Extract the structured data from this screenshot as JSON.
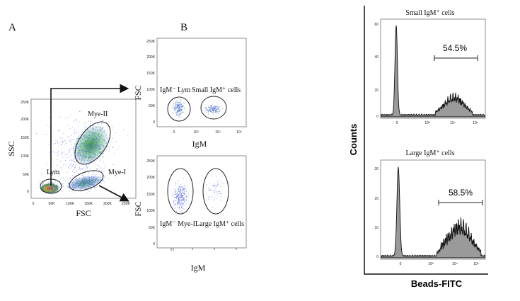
{
  "panel_a": {
    "letter": "A",
    "x_axis_label": "FSC",
    "y_axis_label": "SSC",
    "y_ticks": [
      "0",
      "50K",
      "100K",
      "150K",
      "200K",
      "250K"
    ],
    "x_ticks": [
      "0",
      "50K",
      "100K",
      "150K",
      "200K",
      "250K"
    ],
    "gates": {
      "mye2": "Mye-II",
      "mye1": "Mye-I",
      "lym": "Lym"
    }
  },
  "panel_b": {
    "letter": "B",
    "top": {
      "y_axis_label": "FSC",
      "x_axis_label": "IgM",
      "y_ticks": [
        "0",
        "50K",
        "100K",
        "150K",
        "200K",
        "250K"
      ],
      "x_ticks": [
        "0",
        "10³",
        "10⁴",
        "10⁵"
      ],
      "gate_left": "IgM⁻ Lym",
      "gate_right": "Small IgM⁺ cells"
    },
    "bottom": {
      "y_axis_label": "FSC",
      "x_axis_label": "IgM",
      "y_ticks": [
        "0",
        "50K",
        "100K",
        "150K",
        "200K",
        "250K"
      ],
      "gate_left": "IgM⁻ Mye-I",
      "gate_right": "Large IgM⁺ cells"
    }
  },
  "panel_c": {
    "y_axis_label": "Counts",
    "x_axis_label": "Beads-FITC",
    "top": {
      "title": "Small IgM⁺ cells",
      "percent": "54.5%",
      "y_ticks": [
        "0",
        "20",
        "40",
        "60"
      ],
      "x_ticks": [
        "0",
        "10³",
        "10⁴",
        "10⁵"
      ]
    },
    "bottom": {
      "title": "Large IgM⁺ cells",
      "percent": "58.5%",
      "y_ticks": [
        "0",
        "10",
        "20",
        "30"
      ],
      "x_ticks": [
        "0",
        "10³",
        "10⁴",
        "10⁵"
      ]
    }
  },
  "colors": {
    "dots": "#5a6ee0",
    "dense": "#2e9b3a",
    "hot": "#e23b1c",
    "histogram": "#9a9a9a"
  }
}
